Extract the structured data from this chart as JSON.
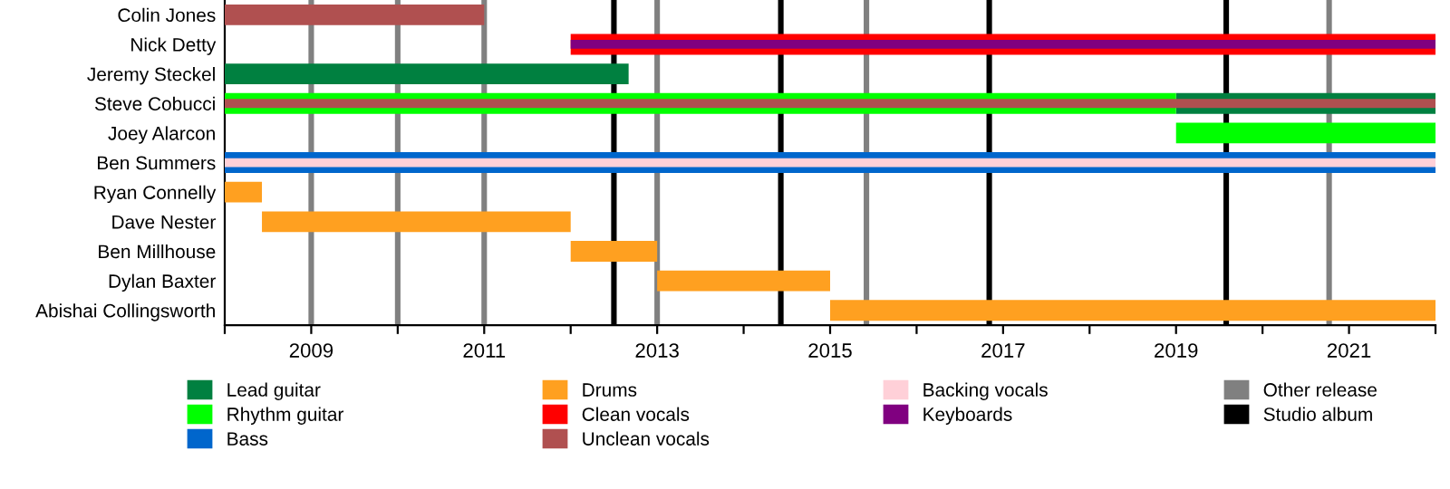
{
  "chart_data": {
    "type": "bar",
    "orientation": "horizontal",
    "categories": [
      "Colin Jones",
      "Nick Detty",
      "Jeremy Steckel",
      "Steve Cobucci",
      "Joey Alarcon",
      "Ben Summers",
      "Ryan Connelly",
      "Dave Nester",
      "Ben Millhouse",
      "Dylan Baxter",
      "Abishai Collingsworth"
    ],
    "series": [
      {
        "name": "Lead guitar",
        "color": "#008040",
        "base": [
          null,
          null,
          2008,
          2019,
          null,
          null,
          null,
          null,
          null,
          null,
          null
        ],
        "values": [
          null,
          null,
          4.67,
          3,
          null,
          null,
          null,
          null,
          null,
          null,
          null
        ]
      },
      {
        "name": "Rhythm guitar",
        "color": "#00ff00",
        "base": [
          null,
          null,
          null,
          2008,
          2019,
          null,
          null,
          null,
          null,
          null,
          null
        ],
        "values": [
          null,
          null,
          null,
          11,
          3,
          null,
          null,
          null,
          null,
          null,
          null
        ]
      },
      {
        "name": "Bass",
        "color": "#0066cc",
        "base": [
          null,
          null,
          null,
          null,
          null,
          2008,
          null,
          null,
          null,
          null,
          null
        ],
        "values": [
          null,
          null,
          null,
          null,
          null,
          14,
          null,
          null,
          null,
          null,
          null
        ]
      },
      {
        "name": "Drums",
        "color": "#ffa020",
        "base": [
          null,
          null,
          null,
          null,
          null,
          null,
          2008,
          2008.43,
          2012,
          2013,
          2015
        ],
        "values": [
          null,
          null,
          null,
          null,
          null,
          null,
          0.43,
          3.57,
          1,
          2,
          7
        ]
      },
      {
        "name": "Clean vocals",
        "color": "#ff0000",
        "base": [
          null,
          2012,
          null,
          null,
          null,
          null,
          null,
          null,
          null,
          null,
          null
        ],
        "values": [
          null,
          10,
          null,
          null,
          null,
          null,
          null,
          null,
          null,
          null,
          null
        ]
      },
      {
        "name": "Unclean vocals",
        "color": "#b05050",
        "base": [
          2008,
          null,
          null,
          2008,
          null,
          null,
          null,
          null,
          null,
          null,
          null
        ],
        "values": [
          3,
          null,
          null,
          14,
          null,
          null,
          null,
          null,
          null,
          null,
          null
        ]
      },
      {
        "name": "Backing vocals",
        "color": "#ffd0d8",
        "base": [
          null,
          null,
          null,
          null,
          null,
          2008,
          null,
          null,
          null,
          null,
          null
        ],
        "values": [
          null,
          null,
          null,
          null,
          null,
          14,
          null,
          null,
          null,
          null,
          null
        ]
      },
      {
        "name": "Keyboards",
        "color": "#800080",
        "base": [
          null,
          2012,
          null,
          null,
          null,
          null,
          null,
          null,
          null,
          null,
          null
        ],
        "values": [
          null,
          10,
          null,
          null,
          null,
          null,
          null,
          null,
          null,
          null,
          null
        ]
      }
    ],
    "ref_lines": [
      {
        "axis": "x",
        "value": 2009,
        "label": "Other release",
        "color": "#808080"
      },
      {
        "axis": "x",
        "value": 2010,
        "color": "#808080"
      },
      {
        "axis": "x",
        "value": 2011,
        "color": "#808080"
      },
      {
        "axis": "x",
        "value": 2012.5,
        "label": "Studio album",
        "color": "#000000"
      },
      {
        "axis": "x",
        "value": 2013,
        "color": "#808080"
      },
      {
        "axis": "x",
        "value": 2014.43,
        "color": "#000000"
      },
      {
        "axis": "x",
        "value": 2015.42,
        "color": "#808080"
      },
      {
        "axis": "x",
        "value": 2016.84,
        "color": "#000000"
      },
      {
        "axis": "x",
        "value": 2019.58,
        "color": "#000000"
      },
      {
        "axis": "x",
        "value": 2020.77,
        "color": "#808080"
      }
    ],
    "xlim": [
      2008,
      2022
    ],
    "xticks": [
      {
        "value": 2008,
        "label": null
      },
      2009,
      {
        "value": 2010,
        "label": null
      },
      2011,
      {
        "value": 2012,
        "label": null
      },
      2013,
      {
        "value": 2014,
        "label": null
      },
      2015,
      {
        "value": 2016,
        "label": null
      },
      2017,
      {
        "value": 2018,
        "label": null
      },
      2019,
      {
        "value": 2020,
        "label": null
      },
      2021,
      {
        "value": 2022,
        "label": null
      }
    ],
    "grid": false,
    "legend": "bottom"
  }
}
